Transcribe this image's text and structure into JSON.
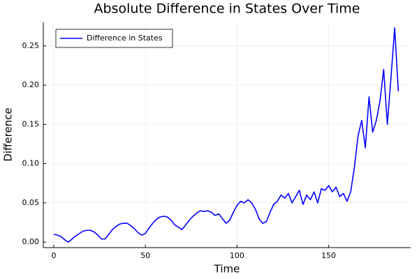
{
  "chart_data": {
    "type": "line",
    "title": "Absolute Difference in States Over Time",
    "xlabel": "Time",
    "ylabel": "Difference",
    "x": [
      0,
      2,
      4,
      6,
      8,
      10,
      12,
      14,
      16,
      18,
      20,
      22,
      24,
      26,
      28,
      30,
      32,
      34,
      36,
      38,
      40,
      42,
      44,
      46,
      48,
      50,
      52,
      54,
      56,
      58,
      60,
      62,
      64,
      66,
      68,
      70,
      72,
      74,
      76,
      78,
      80,
      82,
      84,
      86,
      88,
      90,
      92,
      94,
      96,
      98,
      100,
      102,
      104,
      106,
      108,
      110,
      112,
      114,
      116,
      118,
      120,
      122,
      124,
      126,
      128,
      130,
      132,
      134,
      136,
      138,
      140,
      142,
      144,
      146,
      148,
      150,
      152,
      154,
      156,
      158,
      160,
      162,
      164,
      166,
      168,
      170,
      172,
      174,
      176,
      178,
      180,
      182,
      184,
      186,
      188
    ],
    "series": [
      {
        "name": "Difference in States",
        "color": "#0000ff",
        "values": [
          0.01,
          0.009,
          0.007,
          0.003,
          0.0,
          0.004,
          0.008,
          0.011,
          0.014,
          0.015,
          0.015,
          0.013,
          0.009,
          0.004,
          0.004,
          0.01,
          0.016,
          0.02,
          0.023,
          0.024,
          0.024,
          0.021,
          0.017,
          0.012,
          0.009,
          0.011,
          0.018,
          0.024,
          0.029,
          0.032,
          0.033,
          0.032,
          0.028,
          0.022,
          0.019,
          0.016,
          0.022,
          0.028,
          0.033,
          0.037,
          0.04,
          0.039,
          0.04,
          0.038,
          0.034,
          0.036,
          0.03,
          0.024,
          0.028,
          0.038,
          0.047,
          0.052,
          0.05,
          0.054,
          0.05,
          0.042,
          0.03,
          0.024,
          0.026,
          0.038,
          0.048,
          0.052,
          0.06,
          0.056,
          0.062,
          0.05,
          0.058,
          0.066,
          0.048,
          0.06,
          0.054,
          0.064,
          0.05,
          0.068,
          0.066,
          0.072,
          0.064,
          0.07,
          0.058,
          0.062,
          0.052,
          0.064,
          0.095,
          0.135,
          0.155,
          0.12,
          0.185,
          0.14,
          0.155,
          0.18,
          0.22,
          0.15,
          0.21,
          0.273,
          0.192
        ]
      }
    ],
    "xlim": [
      -5.7,
      194.7
    ],
    "xticks": [
      0,
      50,
      100,
      150
    ],
    "ylim": [
      -0.007,
      0.28
    ],
    "yticks": [
      {
        "value": 0,
        "label": "0.00"
      },
      {
        "value": 0.05,
        "label": "0.05"
      },
      {
        "value": 0.1,
        "label": "0.10"
      },
      {
        "value": 0.15,
        "label": "0.15"
      },
      {
        "value": 0.2,
        "label": "0.20"
      },
      {
        "value": 0.25,
        "label": "0.25"
      }
    ],
    "grid": true,
    "legend": "top-left"
  }
}
